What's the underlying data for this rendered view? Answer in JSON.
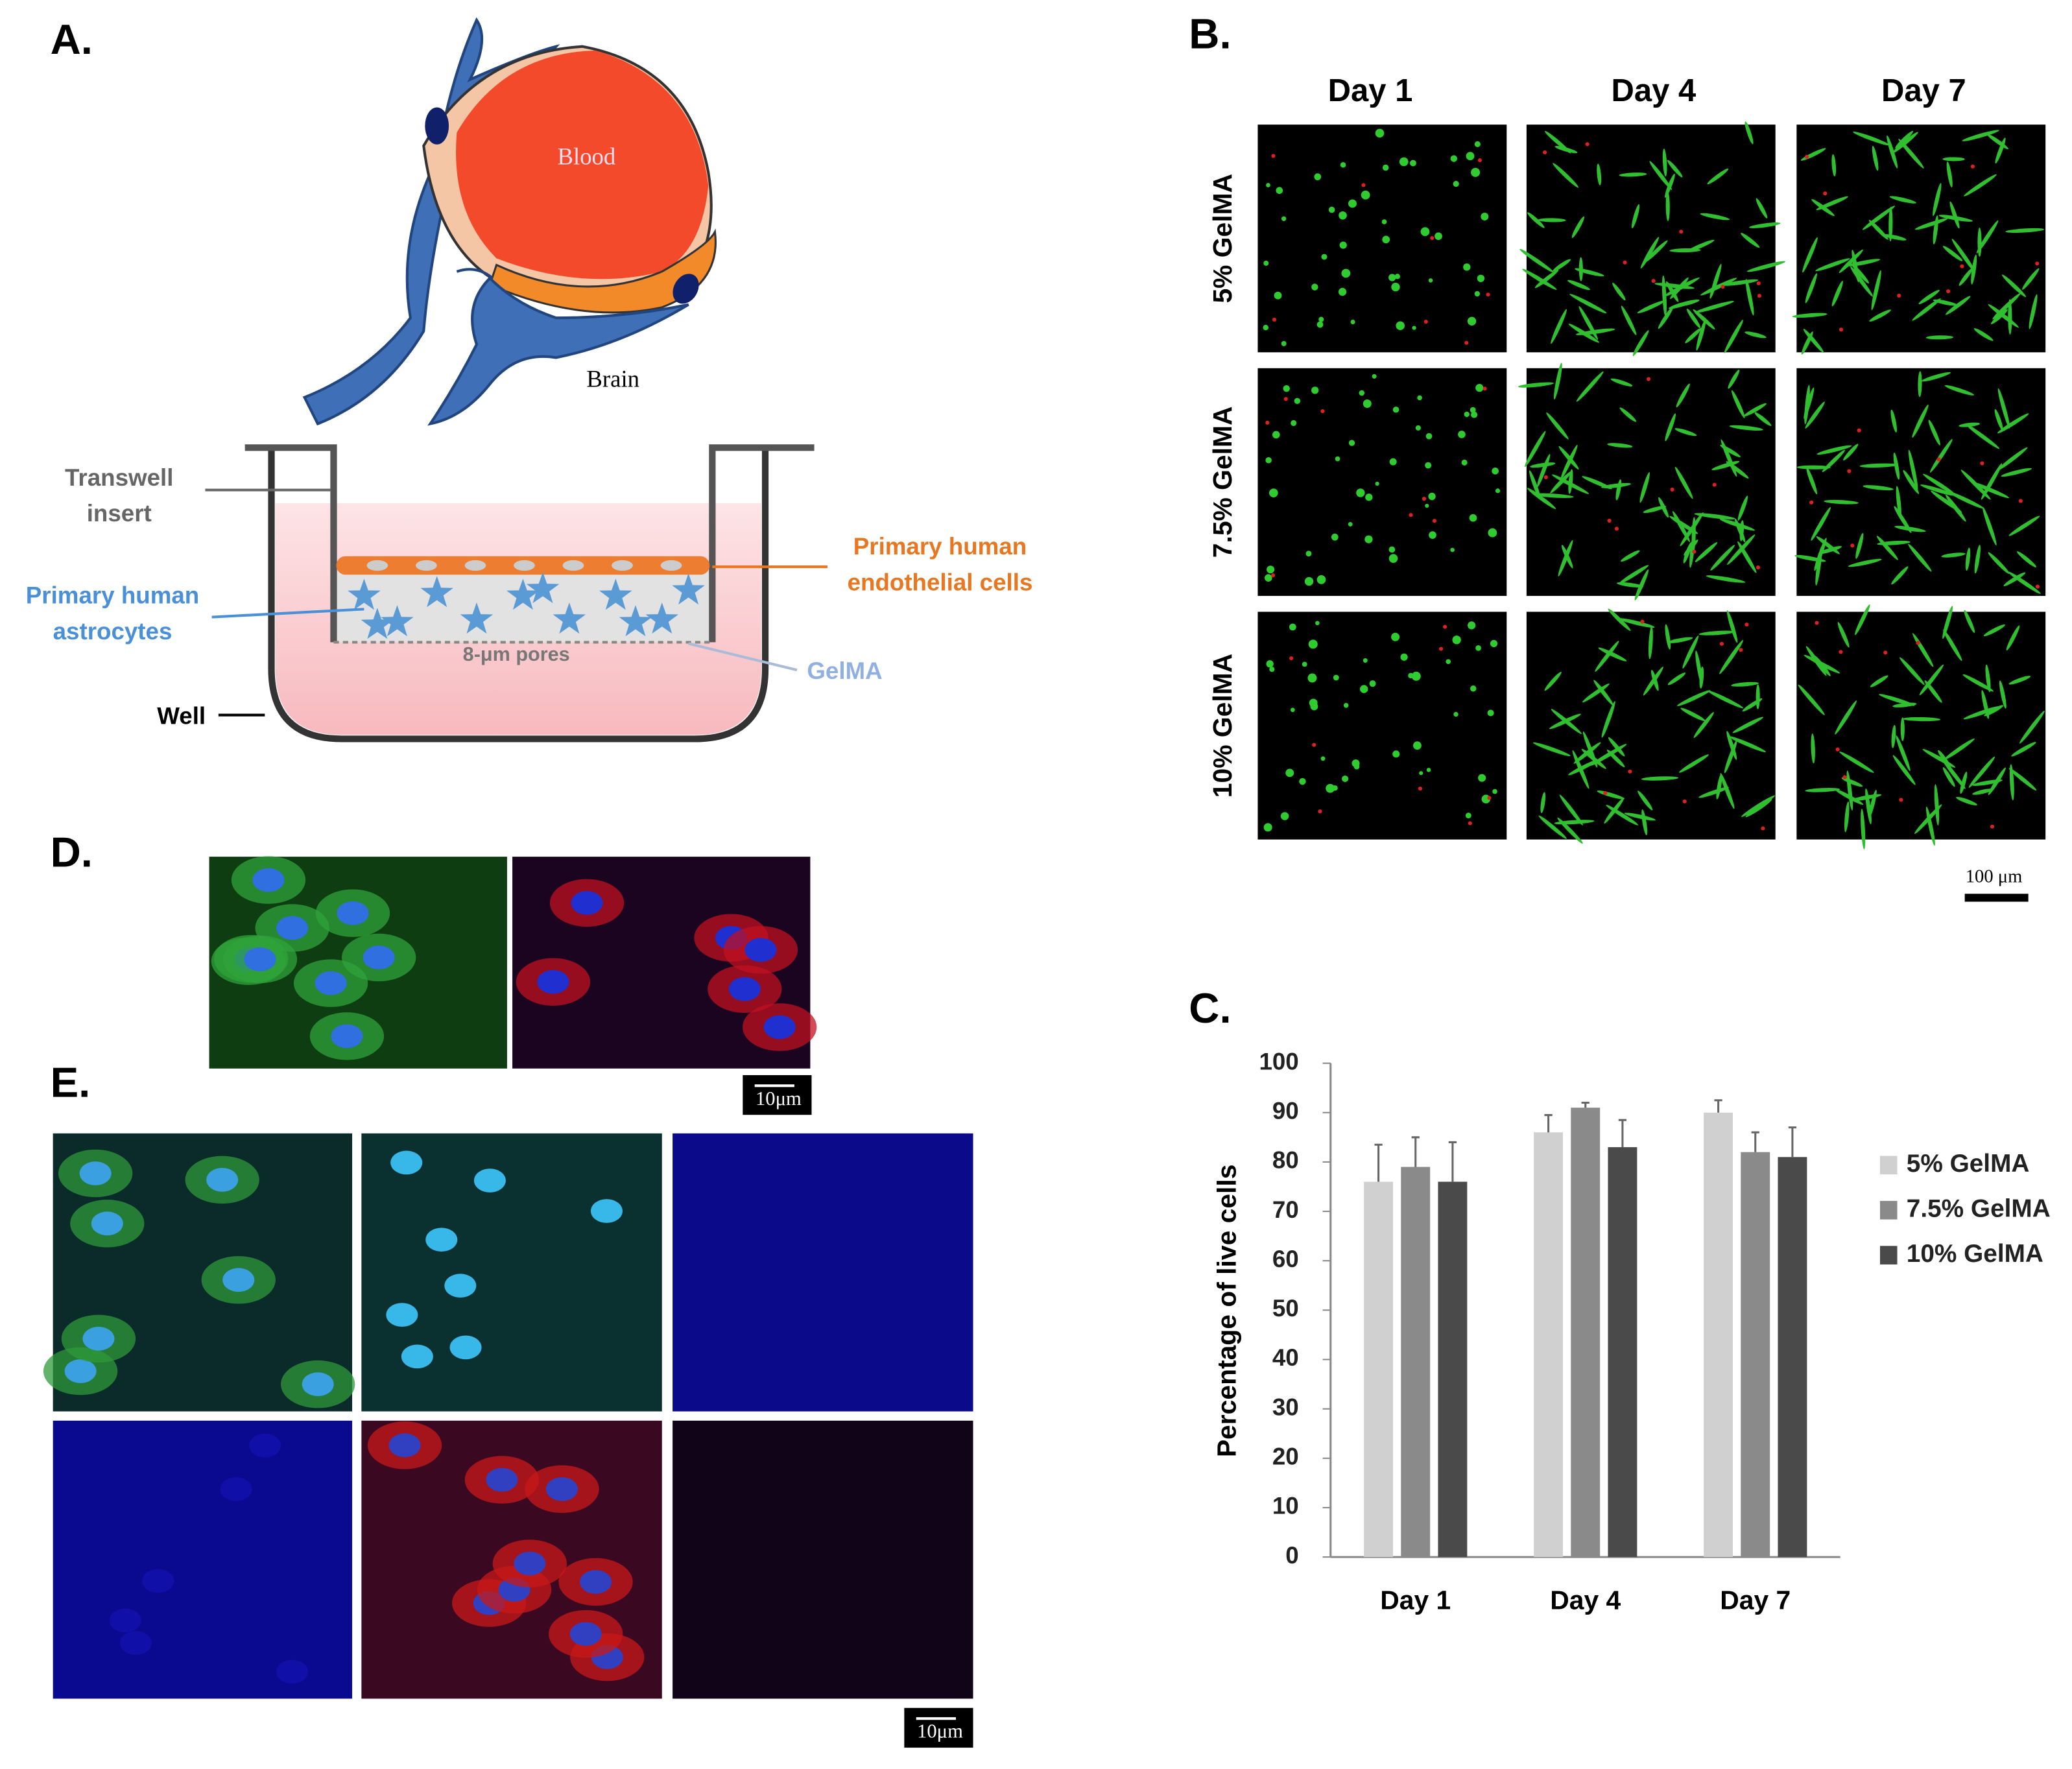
{
  "panel_labels": [
    "A.",
    "B.",
    "C.",
    "D.",
    "E."
  ],
  "panel_a": {
    "blood": "Blood",
    "brain": "Brain",
    "insert": [
      "Transwell",
      "insert"
    ],
    "endothelial": [
      "Primary human",
      "endothelial cells"
    ],
    "astrocytes": [
      "Primary human",
      "astrocytes"
    ],
    "pores": "8-μm pores",
    "gelma": "GelMA",
    "well": "Well"
  },
  "panel_b": {
    "columns": [
      "Day 1",
      "Day 4",
      "Day 7"
    ],
    "rows": [
      "5% GelMA",
      "7.5% GelMA",
      "10% GelMA"
    ],
    "scale_bar": "100 μm"
  },
  "panel_d": {
    "scale_bar": "10μm"
  },
  "panel_e": {
    "scale_bar": "10μm"
  },
  "chart_data": {
    "type": "bar",
    "y_label": "Percentage of live cells",
    "categories": [
      "Day 1",
      "Day 4",
      "Day 7"
    ],
    "series": [
      {
        "name": "5% GelMA",
        "color": "#d0d0d0",
        "values": [
          76,
          86,
          90
        ],
        "errors": [
          7.5,
          3.5,
          2.5
        ]
      },
      {
        "name": "7.5% GelMA",
        "color": "#8a8a8a",
        "values": [
          79,
          91,
          82
        ],
        "errors": [
          6,
          1,
          4
        ]
      },
      {
        "name": "10% GelMA",
        "color": "#4a4a4a",
        "values": [
          76,
          83,
          81
        ],
        "errors": [
          8,
          5.5,
          6
        ]
      }
    ],
    "ylim": [
      0,
      100
    ],
    "yticks": [
      0,
      10,
      20,
      30,
      40,
      50,
      60,
      70,
      80,
      90,
      100
    ],
    "legend": "right"
  }
}
